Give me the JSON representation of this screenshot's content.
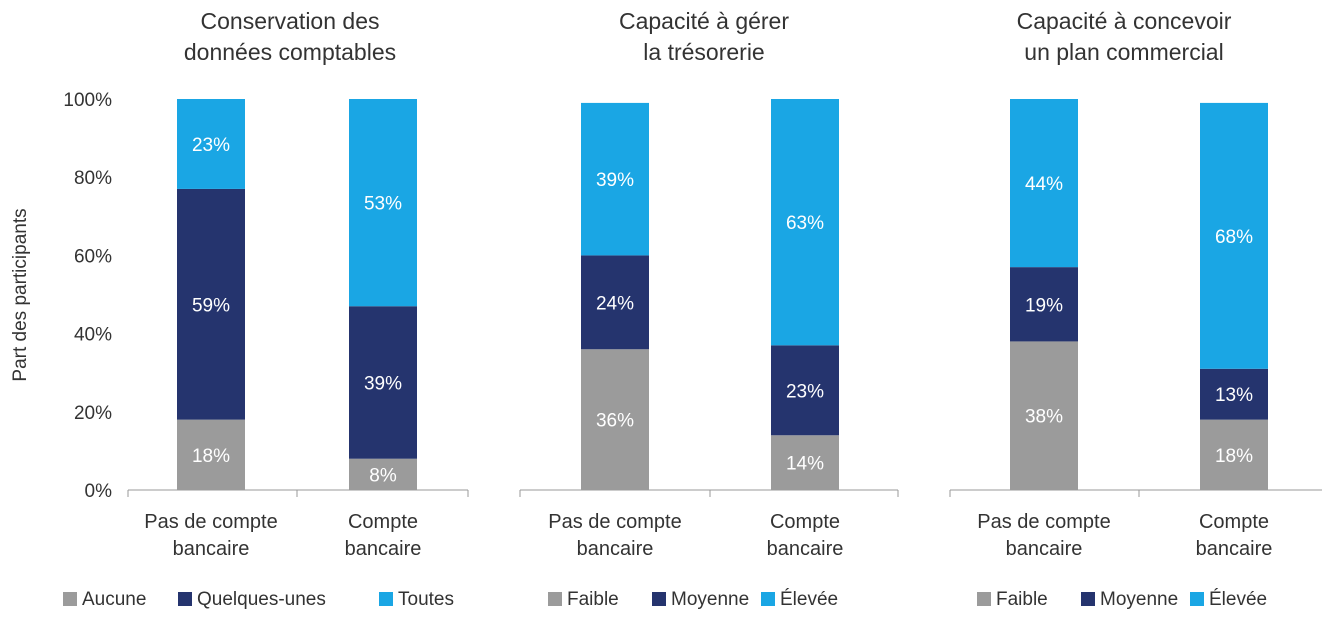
{
  "ylabel": "Part des participants",
  "y_ticks": [
    "0%",
    "20%",
    "40%",
    "60%",
    "80%",
    "100%"
  ],
  "colors": {
    "gray": "#9b9b9b",
    "navy": "#25346e",
    "blue": "#1aa6e4",
    "text_dark": "#333333",
    "axis": "#999999"
  },
  "chart_data": [
    {
      "type": "bar",
      "stacked": true,
      "title": "Conservation des données comptables",
      "title_lines": [
        "Conservation des",
        "données comptables"
      ],
      "categories": [
        "Pas de compte bancaire",
        "Compte bancaire"
      ],
      "category_lines": [
        [
          "Pas de compte",
          "bancaire"
        ],
        [
          "Compte",
          "bancaire"
        ]
      ],
      "ylim": [
        0,
        100
      ],
      "series": [
        {
          "name": "Aucune",
          "color": "#9b9b9b",
          "values": [
            18,
            8
          ],
          "labels": [
            "18%",
            "8%"
          ]
        },
        {
          "name": "Quelques-unes",
          "color": "#25346e",
          "values": [
            59,
            39
          ],
          "labels": [
            "59%",
            "39%"
          ]
        },
        {
          "name": "Toutes",
          "color": "#1aa6e4",
          "values": [
            23,
            53
          ],
          "labels": [
            "23%",
            "53%"
          ]
        }
      ]
    },
    {
      "type": "bar",
      "stacked": true,
      "title": "Capacité à gérer la trésorerie",
      "title_lines": [
        "Capacité à gérer",
        "la trésorerie"
      ],
      "categories": [
        "Pas de compte bancaire",
        "Compte bancaire"
      ],
      "category_lines": [
        [
          "Pas de compte",
          "bancaire"
        ],
        [
          "Compte",
          "bancaire"
        ]
      ],
      "ylim": [
        0,
        100
      ],
      "series": [
        {
          "name": "Faible",
          "color": "#9b9b9b",
          "values": [
            36,
            14
          ],
          "labels": [
            "36%",
            "14%"
          ]
        },
        {
          "name": "Moyenne",
          "color": "#25346e",
          "values": [
            24,
            23
          ],
          "labels": [
            "24%",
            "23%"
          ]
        },
        {
          "name": "Élevée",
          "color": "#1aa6e4",
          "values": [
            39,
            63
          ],
          "labels": [
            "39%",
            "63%"
          ]
        }
      ]
    },
    {
      "type": "bar",
      "stacked": true,
      "title": "Capacité à concevoir un plan commercial",
      "title_lines": [
        "Capacité à concevoir",
        "un plan commercial"
      ],
      "categories": [
        "Pas de compte bancaire",
        "Compte bancaire"
      ],
      "category_lines": [
        [
          "Pas de compte",
          "bancaire"
        ],
        [
          "Compte",
          "bancaire"
        ]
      ],
      "ylim": [
        0,
        100
      ],
      "series": [
        {
          "name": "Faible",
          "color": "#9b9b9b",
          "values": [
            38,
            18
          ],
          "labels": [
            "38%",
            "18%"
          ]
        },
        {
          "name": "Moyenne",
          "color": "#25346e",
          "values": [
            19,
            13
          ],
          "labels": [
            "19%",
            "13%"
          ]
        },
        {
          "name": "Élevée",
          "color": "#1aa6e4",
          "values": [
            44,
            68
          ],
          "labels": [
            "44%",
            "68%"
          ]
        }
      ]
    }
  ]
}
